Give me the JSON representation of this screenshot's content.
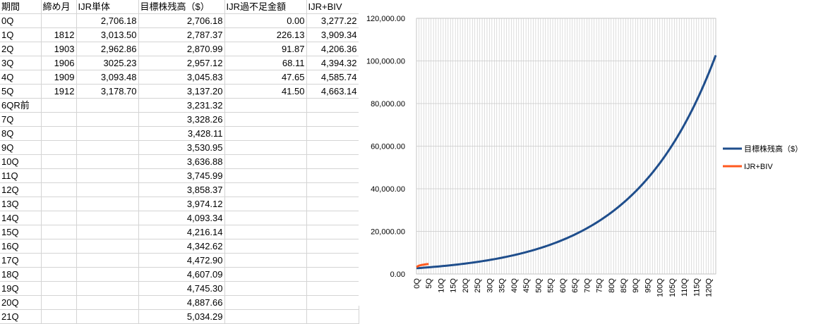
{
  "sheet": {
    "headers": [
      "期間",
      "締め月",
      "IJR単体",
      "目標株残高（$）",
      "IJR過不足金額",
      "IJR+BIV"
    ],
    "rows": [
      [
        "0Q",
        "",
        "2,706.18",
        "2,706.18",
        "0.00",
        "3,277.22"
      ],
      [
        "1Q",
        "1812",
        "3,013.50",
        "2,787.37",
        "226.13",
        "3,909.34"
      ],
      [
        "2Q",
        "1903",
        "2,962.86",
        "2,870.99",
        "91.87",
        "4,206.36"
      ],
      [
        "3Q",
        "1906",
        "3025.23",
        "2,957.12",
        "68.11",
        "4,394.32"
      ],
      [
        "4Q",
        "1909",
        "3,093.48",
        "3,045.83",
        "47.65",
        "4,585.74"
      ],
      [
        "5Q",
        "1912",
        "3,178.70",
        "3,137.20",
        "41.50",
        "4,663.14"
      ],
      [
        "6QR前",
        "",
        "",
        "3,231.32",
        "",
        ""
      ],
      [
        "7Q",
        "",
        "",
        "3,328.26",
        "",
        ""
      ],
      [
        "8Q",
        "",
        "",
        "3,428.11",
        "",
        ""
      ],
      [
        "9Q",
        "",
        "",
        "3,530.95",
        "",
        ""
      ],
      [
        "10Q",
        "",
        "",
        "3,636.88",
        "",
        ""
      ],
      [
        "11Q",
        "",
        "",
        "3,745.99",
        "",
        ""
      ],
      [
        "12Q",
        "",
        "",
        "3,858.37",
        "",
        ""
      ],
      [
        "13Q",
        "",
        "",
        "3,974.12",
        "",
        ""
      ],
      [
        "14Q",
        "",
        "",
        "4,093.34",
        "",
        ""
      ],
      [
        "15Q",
        "",
        "",
        "4,216.14",
        "",
        ""
      ],
      [
        "16Q",
        "",
        "",
        "4,342.62",
        "",
        ""
      ],
      [
        "17Q",
        "",
        "",
        "4,472.90",
        "",
        ""
      ],
      [
        "18Q",
        "",
        "",
        "4,607.09",
        "",
        ""
      ],
      [
        "19Q",
        "",
        "",
        "4,745.30",
        "",
        ""
      ],
      [
        "20Q",
        "",
        "",
        "4,887.66",
        "",
        ""
      ],
      [
        "21Q",
        "",
        "",
        "5,034.29",
        "",
        ""
      ]
    ]
  },
  "colors": {
    "target_line": "#1f4e8c",
    "ijr_biv_line": "#ff5a1f",
    "gridline": "#c8c8c8",
    "cell_border": "#d4d4d4"
  },
  "chart_data": {
    "type": "line",
    "x_start_quarter": 0,
    "x_end_quarter": 123,
    "x_tick_labels": [
      "0Q",
      "5Q",
      "10Q",
      "15Q",
      "20Q",
      "25Q",
      "30Q",
      "35Q",
      "40Q",
      "45Q",
      "50Q",
      "55Q",
      "60Q",
      "65Q",
      "70Q",
      "75Q",
      "80Q",
      "85Q",
      "90Q",
      "95Q",
      "100Q",
      "105Q",
      "110Q",
      "115Q",
      "120Q"
    ],
    "y_tick_labels": [
      "0.00",
      "20,000.00",
      "40,000.00",
      "60,000.00",
      "80,000.00",
      "100,000.00",
      "120,000.00"
    ],
    "ylim": [
      0,
      120000
    ],
    "grid": "vertical and horizontal",
    "legend_position": "right",
    "series": [
      {
        "name": "目標株残高（$）",
        "quarters": [
          0,
          1,
          2,
          3,
          4,
          5,
          6,
          7,
          8,
          9,
          10,
          11,
          12,
          13,
          14,
          15,
          16,
          17,
          18,
          19,
          20,
          21
        ],
        "values": [
          2706.18,
          2787.37,
          2870.99,
          2957.12,
          3045.83,
          3137.2,
          3231.32,
          3328.26,
          3428.11,
          3530.95,
          3636.88,
          3745.99,
          3858.37,
          3974.12,
          4093.34,
          4216.14,
          4342.62,
          4472.9,
          4607.09,
          4745.3,
          4887.66,
          5034.29
        ],
        "extends_to_quarter": 123,
        "growth_per_quarter": 0.03
      },
      {
        "name": "IJR+BIV",
        "quarters": [
          0,
          1,
          2,
          3,
          4,
          5
        ],
        "values": [
          3277.22,
          3909.34,
          4206.36,
          4394.32,
          4585.74,
          4663.14
        ]
      }
    ]
  }
}
